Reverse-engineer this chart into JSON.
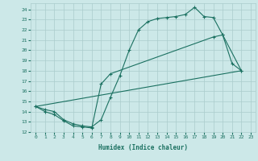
{
  "xlabel": "Humidex (Indice chaleur)",
  "bg_color": "#cce8e8",
  "grid_color": "#aacccc",
  "line_color": "#1a7060",
  "xlim": [
    -0.5,
    23.5
  ],
  "ylim": [
    12,
    24.6
  ],
  "yticks": [
    12,
    13,
    14,
    15,
    16,
    17,
    18,
    19,
    20,
    21,
    22,
    23,
    24
  ],
  "xticks": [
    0,
    1,
    2,
    3,
    4,
    5,
    6,
    7,
    8,
    9,
    10,
    11,
    12,
    13,
    14,
    15,
    16,
    17,
    18,
    19,
    20,
    21,
    22,
    23
  ],
  "curve1_x": [
    0,
    1,
    2,
    3,
    4,
    5,
    6,
    7,
    8,
    9,
    10,
    11,
    12,
    13,
    14,
    15,
    16,
    17,
    18,
    19,
    20,
    21,
    22
  ],
  "curve1_y": [
    14.5,
    14.2,
    14.0,
    13.2,
    12.8,
    12.6,
    12.5,
    13.2,
    15.4,
    17.5,
    20.0,
    22.0,
    22.8,
    23.1,
    23.2,
    23.3,
    23.5,
    24.2,
    23.3,
    23.2,
    21.5,
    18.7,
    18.0
  ],
  "curve2_x": [
    0,
    1,
    2,
    3,
    4,
    5,
    6,
    7,
    8,
    19,
    20,
    22
  ],
  "curve2_y": [
    14.5,
    14.0,
    13.7,
    13.1,
    12.6,
    12.5,
    12.4,
    16.7,
    17.7,
    21.3,
    21.5,
    18.0
  ],
  "curve3_x": [
    0,
    22
  ],
  "curve3_y": [
    14.5,
    18.0
  ]
}
